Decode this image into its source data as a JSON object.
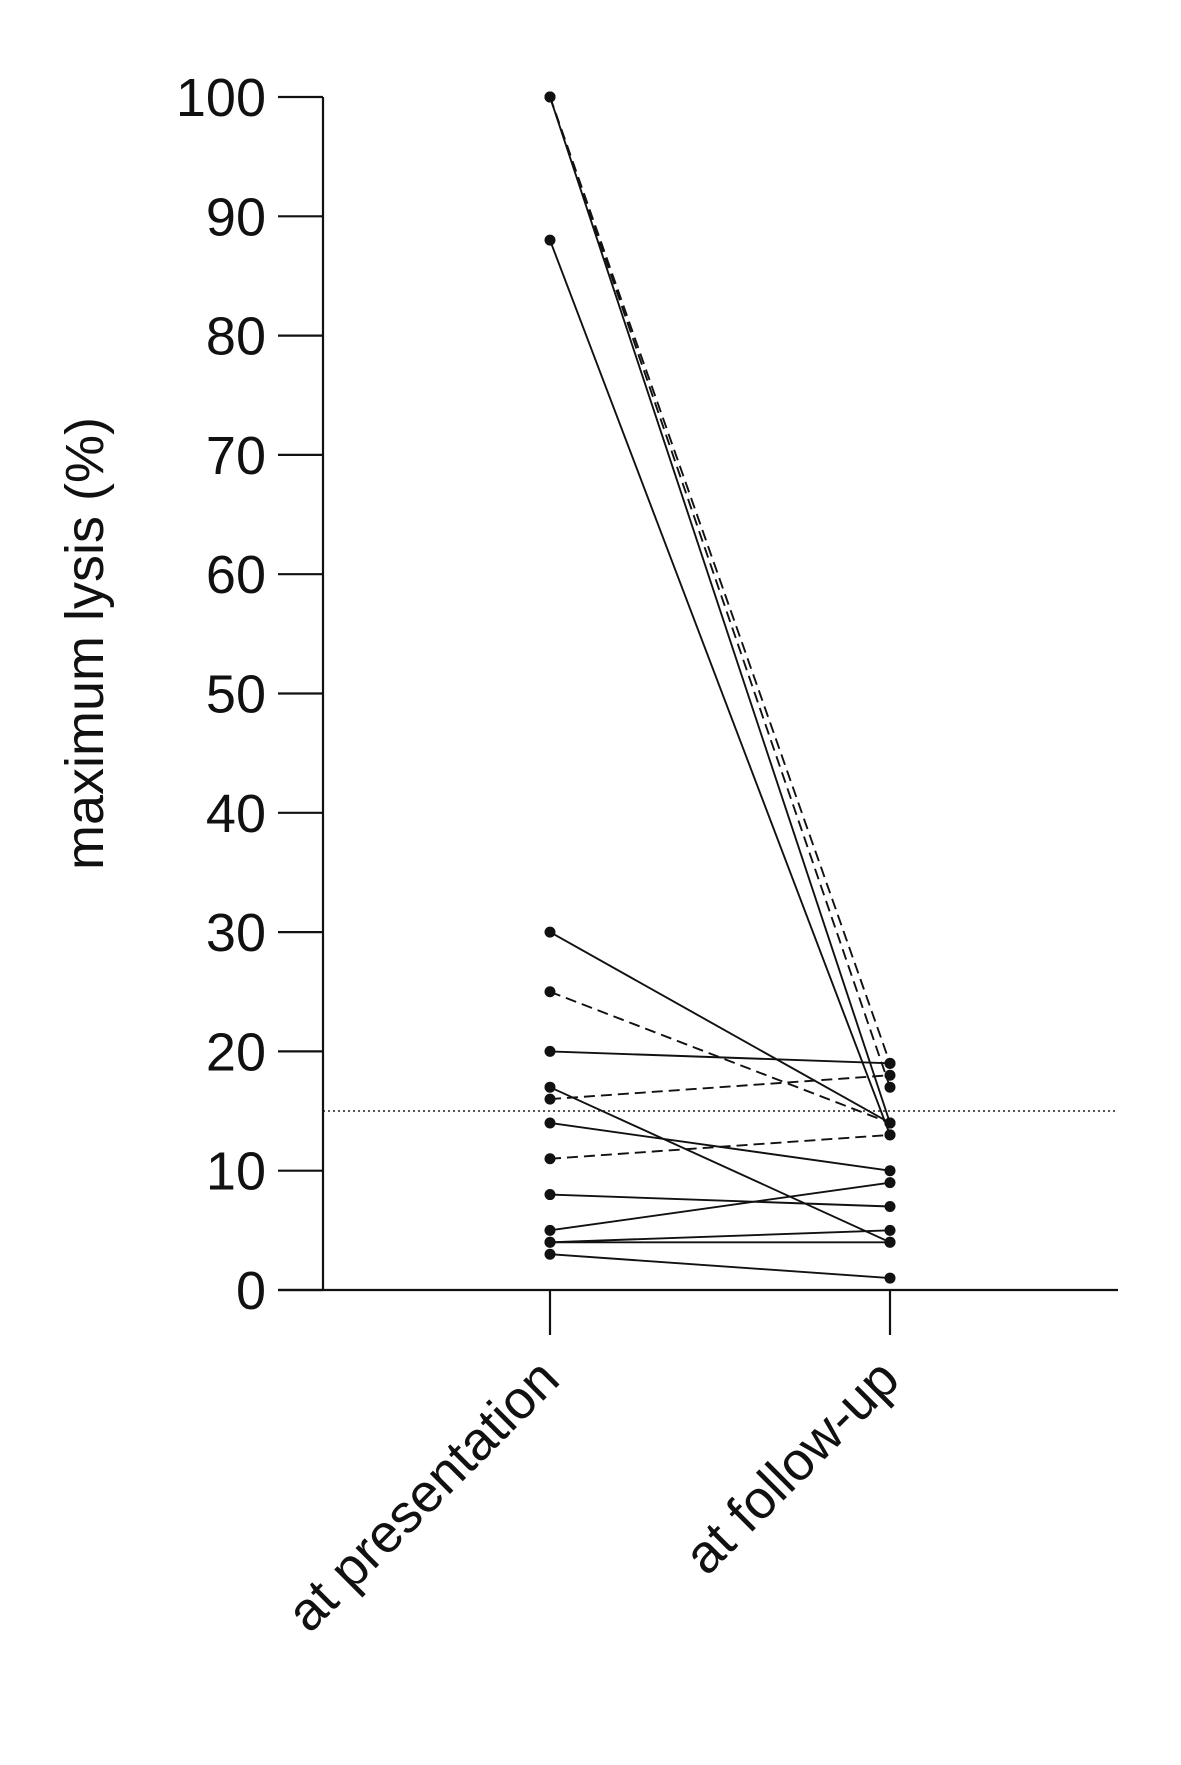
{
  "chart_data": {
    "type": "line",
    "ylabel": "maximum lysis (%)",
    "xlabel": "",
    "title": "",
    "categories": [
      "at presentation",
      "at follow-up"
    ],
    "ylim": [
      0,
      100
    ],
    "yticks": [
      "0",
      "10",
      "20",
      "30",
      "40",
      "50",
      "60",
      "70",
      "80",
      "90",
      "100"
    ],
    "grid": false,
    "reference_line": {
      "y": 15,
      "style": "dotted"
    },
    "series": [
      {
        "values": [
          100,
          14
        ],
        "style": "solid"
      },
      {
        "values": [
          100,
          19
        ],
        "style": "dashed"
      },
      {
        "values": [
          100,
          17
        ],
        "style": "dashed"
      },
      {
        "values": [
          88,
          13
        ],
        "style": "solid"
      },
      {
        "values": [
          30,
          14
        ],
        "style": "solid"
      },
      {
        "values": [
          25,
          14
        ],
        "style": "dashed"
      },
      {
        "values": [
          20,
          19
        ],
        "style": "solid"
      },
      {
        "values": [
          17,
          4
        ],
        "style": "solid"
      },
      {
        "values": [
          16,
          18
        ],
        "style": "dashed"
      },
      {
        "values": [
          14,
          10
        ],
        "style": "solid"
      },
      {
        "values": [
          11,
          13
        ],
        "style": "dashed"
      },
      {
        "values": [
          8,
          7
        ],
        "style": "solid"
      },
      {
        "values": [
          5,
          9
        ],
        "style": "solid"
      },
      {
        "values": [
          4,
          5
        ],
        "style": "solid"
      },
      {
        "values": [
          4,
          4
        ],
        "style": "solid"
      },
      {
        "values": [
          3,
          1
        ],
        "style": "solid"
      }
    ]
  }
}
